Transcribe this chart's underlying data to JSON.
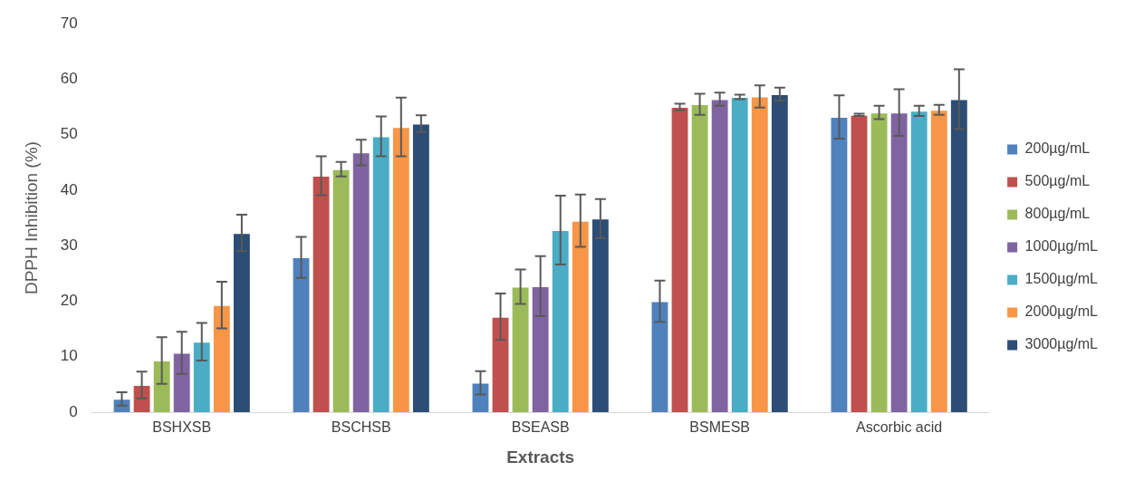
{
  "chart_data": {
    "type": "bar",
    "xlabel": "Extracts",
    "ylabel": "DPPH Inhibition (%)",
    "categories": [
      "BSHXSB",
      "BSCHSB",
      "BSEASB",
      "BSMESB",
      "Ascorbic acid"
    ],
    "ylim": [
      0,
      70
    ],
    "yticks": [
      0,
      10,
      20,
      30,
      40,
      50,
      60,
      70
    ],
    "grid": false,
    "legend": "right",
    "series": [
      {
        "name": "200µg/mL",
        "color": "#4f81bd",
        "values": [
          2.4,
          27.9,
          5.3,
          20.0,
          53.2
        ],
        "errors": [
          1.2,
          3.7,
          2.1,
          3.7,
          3.9
        ]
      },
      {
        "name": "500µg/mL",
        "color": "#c0504d",
        "values": [
          4.9,
          42.6,
          17.2,
          55.0,
          53.6
        ],
        "errors": [
          2.4,
          3.5,
          4.2,
          0.6,
          0.2
        ]
      },
      {
        "name": "800µg/mL",
        "color": "#9bbb59",
        "values": [
          9.3,
          43.8,
          22.6,
          55.5,
          54.0
        ],
        "errors": [
          4.2,
          1.3,
          3.1,
          1.9,
          1.2
        ]
      },
      {
        "name": "1000µg/mL",
        "color": "#8064a2",
        "values": [
          10.7,
          46.8,
          22.7,
          56.4,
          54.0
        ],
        "errors": [
          3.8,
          2.3,
          5.4,
          1.2,
          4.2
        ]
      },
      {
        "name": "1500µg/mL",
        "color": "#4bacc6",
        "values": [
          12.7,
          49.7,
          32.8,
          56.8,
          54.3
        ],
        "errors": [
          3.4,
          3.6,
          6.2,
          0.4,
          0.9
        ]
      },
      {
        "name": "2000µg/mL",
        "color": "#f79646",
        "values": [
          19.3,
          51.4,
          34.5,
          56.9,
          54.5
        ],
        "errors": [
          4.2,
          5.3,
          4.7,
          2.0,
          0.9
        ]
      },
      {
        "name": "3000µg/mL",
        "color": "#2c4d75",
        "values": [
          32.3,
          52.0,
          34.9,
          57.3,
          56.4
        ],
        "errors": [
          3.3,
          1.5,
          3.5,
          1.2,
          5.4
        ]
      }
    ]
  }
}
